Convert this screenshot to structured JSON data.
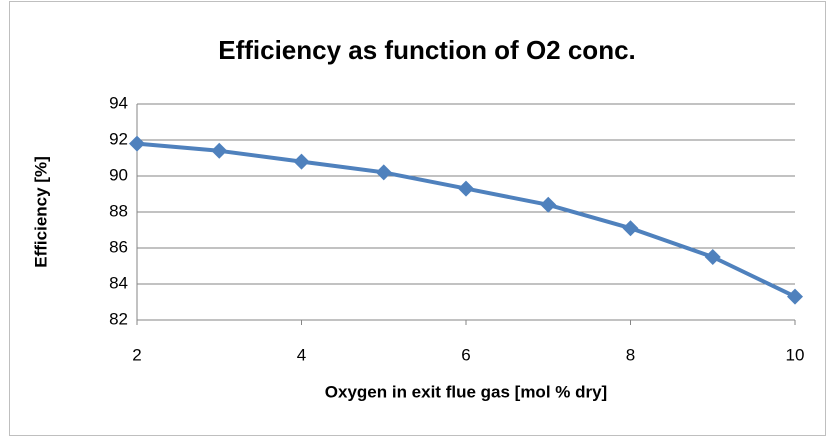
{
  "chart_data": {
    "type": "line",
    "title": "Efficiency as function of O2 conc.",
    "x_label": "Oxygen in exit flue gas [mol % dry]",
    "y_label": "Efficiency [%]",
    "x": [
      2,
      3,
      4,
      5,
      6,
      7,
      8,
      9,
      10
    ],
    "series": [
      {
        "name": "Efficiency",
        "color": "#4f81bd",
        "values": [
          91.8,
          91.4,
          90.8,
          90.2,
          89.3,
          88.4,
          87.1,
          85.5,
          83.3
        ]
      }
    ],
    "xlim": [
      2,
      10
    ],
    "xticks": [
      2,
      4,
      6,
      8,
      10
    ],
    "ylim": [
      82,
      94
    ],
    "yticks": [
      82,
      84,
      86,
      88,
      90,
      92,
      94
    ],
    "grid": true
  }
}
